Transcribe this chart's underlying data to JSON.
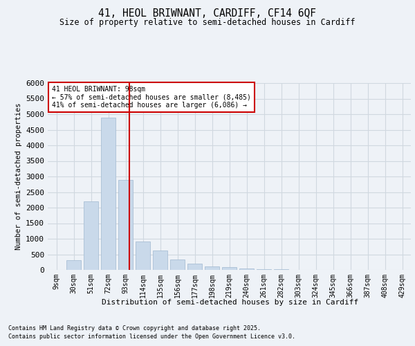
{
  "title1": "41, HEOL BRIWNANT, CARDIFF, CF14 6QF",
  "title2": "Size of property relative to semi-detached houses in Cardiff",
  "xlabel": "Distribution of semi-detached houses by size in Cardiff",
  "ylabel": "Number of semi-detached properties",
  "footnote1": "Contains HM Land Registry data © Crown copyright and database right 2025.",
  "footnote2": "Contains public sector information licensed under the Open Government Licence v3.0.",
  "categories": [
    "9sqm",
    "30sqm",
    "51sqm",
    "72sqm",
    "93sqm",
    "114sqm",
    "135sqm",
    "156sqm",
    "177sqm",
    "198sqm",
    "219sqm",
    "240sqm",
    "261sqm",
    "282sqm",
    "303sqm",
    "324sqm",
    "345sqm",
    "366sqm",
    "387sqm",
    "408sqm",
    "429sqm"
  ],
  "values": [
    10,
    310,
    2200,
    4900,
    2900,
    920,
    620,
    330,
    210,
    110,
    80,
    55,
    30,
    20,
    10,
    10,
    5,
    0,
    0,
    5,
    0
  ],
  "bar_color": "#c9d9ea",
  "bar_edge_color": "#a0b8d0",
  "grid_color": "#d0d8e0",
  "property_label": "41 HEOL BRIWNANT: 98sqm",
  "pct_smaller": 57,
  "n_smaller": 8485,
  "pct_larger": 41,
  "n_larger": 6086,
  "annotation_box_color": "#cc0000",
  "vline_color": "#cc0000",
  "ylim": [
    0,
    6000
  ],
  "yticks": [
    0,
    500,
    1000,
    1500,
    2000,
    2500,
    3000,
    3500,
    4000,
    4500,
    5000,
    5500,
    6000
  ],
  "background_color": "#eef2f7",
  "plot_background": "#eef2f7"
}
